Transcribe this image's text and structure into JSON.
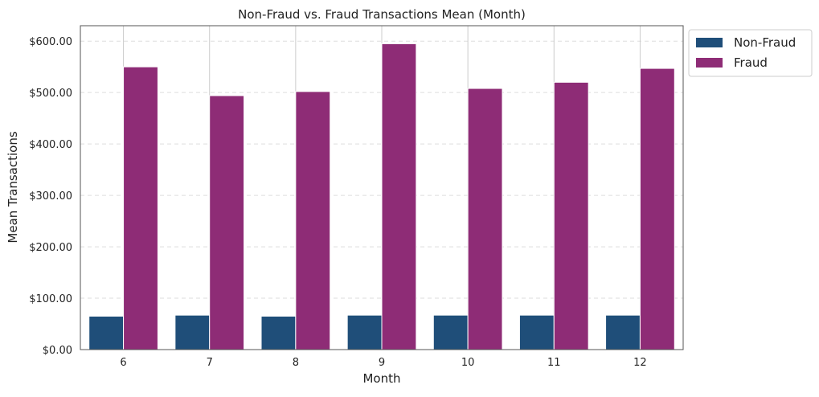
{
  "chart_data": {
    "type": "bar",
    "title": "Non-Fraud vs. Fraud Transactions Mean (Month)",
    "xlabel": "Month",
    "ylabel": "Mean Transactions",
    "categories": [
      "6",
      "7",
      "8",
      "9",
      "10",
      "11",
      "12"
    ],
    "series": [
      {
        "name": "Non-Fraud",
        "color": "#1f4e79",
        "values": [
          65,
          67,
          65,
          67,
          67,
          67,
          67
        ]
      },
      {
        "name": "Fraud",
        "color": "#8e2c76",
        "values": [
          550,
          494,
          502,
          595,
          508,
          520,
          547
        ]
      }
    ],
    "ylim": [
      0,
      630
    ],
    "yticks": [
      0,
      100,
      200,
      300,
      400,
      500,
      600
    ],
    "ytick_labels": [
      "$0.00",
      "$100.00",
      "$200.00",
      "$300.00",
      "$400.00",
      "$500.00",
      "$600.00"
    ],
    "grid": "horizontal dashed",
    "legend_position": "outside top-right"
  }
}
